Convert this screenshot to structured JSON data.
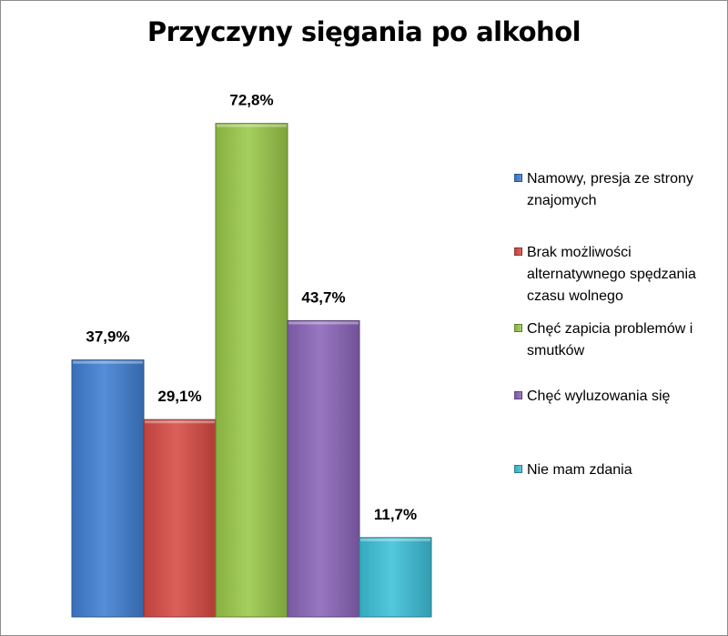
{
  "chart_data": {
    "type": "bar",
    "title": "Przyczyny sięgania po alkohol",
    "categories": [
      "Namowy, presja ze strony znajomych",
      "Brak możliwości alternatywnego spędzania czasu wolnego",
      "Chęć zapicia problemów i smutków",
      "Chęć wyluzowania się",
      "Nie mam zdania"
    ],
    "values": [
      37.9,
      29.1,
      72.8,
      43.7,
      11.7
    ],
    "value_labels": [
      "37,9%",
      "29,1%",
      "72,8%",
      "43,7%",
      "11,7%"
    ],
    "colors": [
      "#3f7fd2",
      "#d74a44",
      "#99c848",
      "#8a64b8",
      "#3cc0d8"
    ],
    "ylim": [
      0,
      80
    ],
    "xlabel": "",
    "ylabel": "",
    "grid": false,
    "legend_position": "right"
  }
}
